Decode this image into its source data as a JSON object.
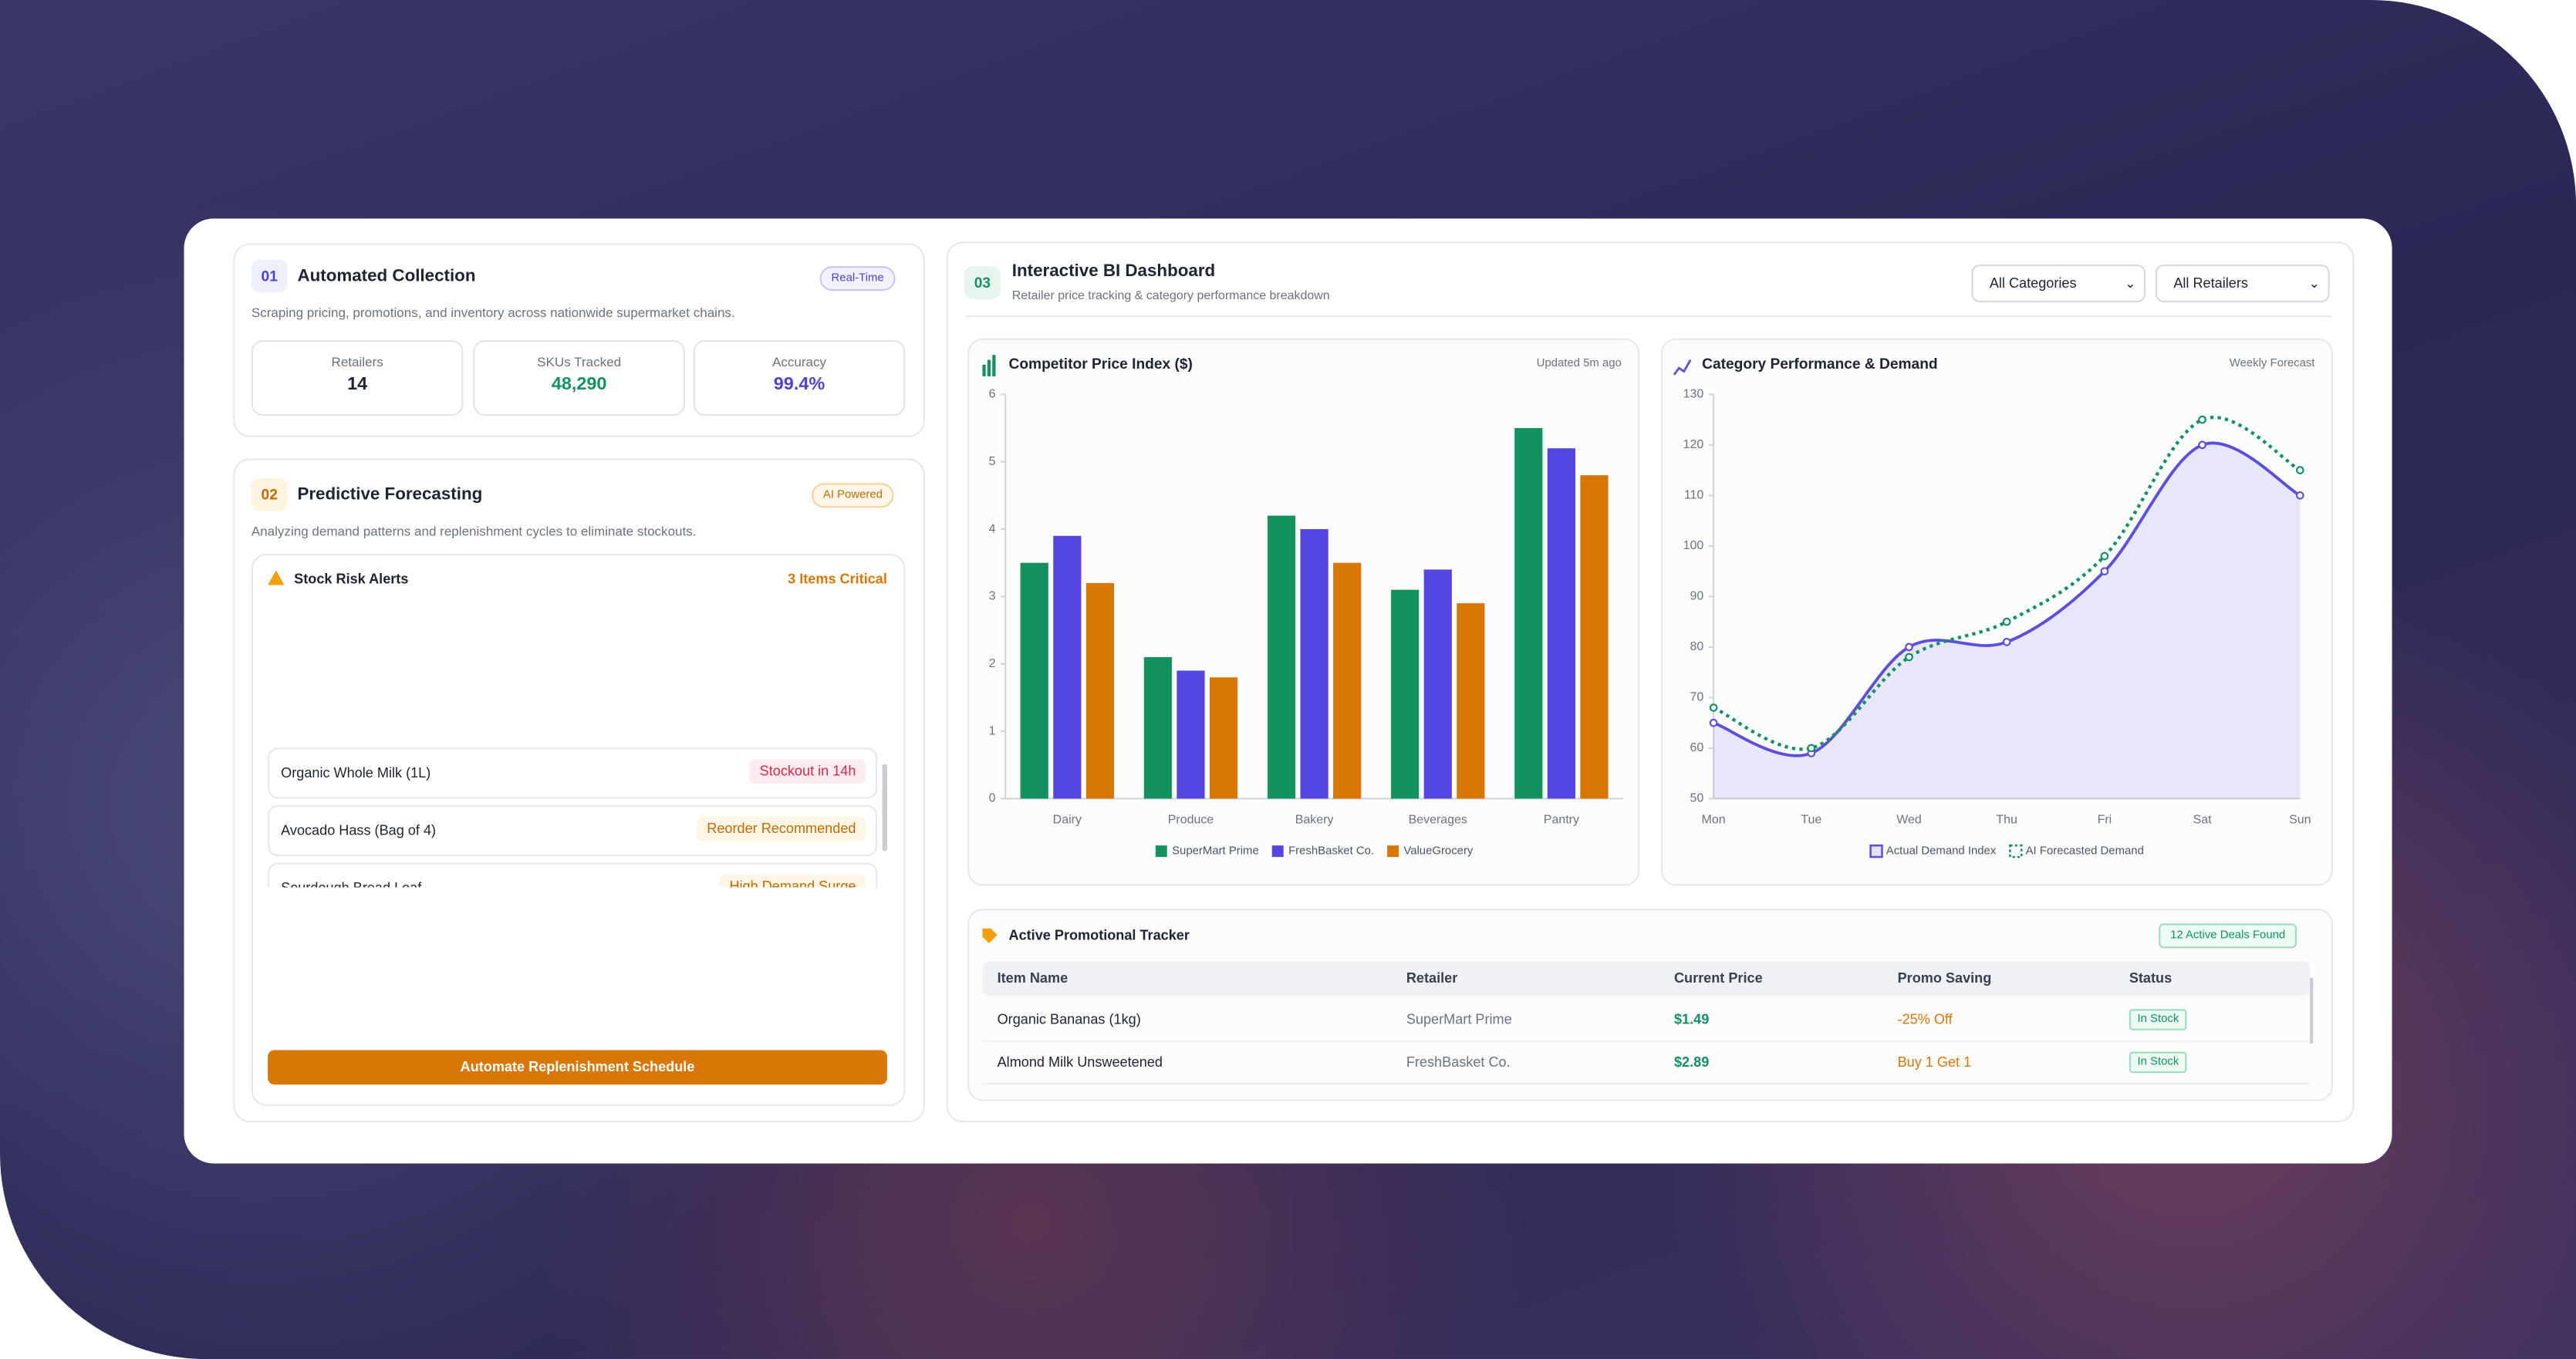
{
  "collection": {
    "number": "01",
    "title": "Automated Collection",
    "badge": "Real-Time",
    "description": "Scraping pricing, promotions, and inventory across nationwide supermarket chains.",
    "stats": [
      {
        "label": "Retailers",
        "value": "14"
      },
      {
        "label": "SKUs Tracked",
        "value": "48,290"
      },
      {
        "label": "Accuracy",
        "value": "99.4%"
      }
    ]
  },
  "forecasting": {
    "number": "02",
    "title": "Predictive Forecasting",
    "badge": "AI Powered",
    "description": "Analyzing demand patterns and replenishment cycles to eliminate stockouts.",
    "alerts": {
      "title": "Stock Risk Alerts",
      "summary": "3 Items Critical",
      "items": [
        {
          "name": "Organic Whole Milk (1L)",
          "status": "Stockout in 14h"
        },
        {
          "name": "Avocado Hass (Bag of 4)",
          "status": "Reorder Recommended"
        },
        {
          "name": "Sourdough Bread Loaf",
          "status": "High Demand Surge"
        }
      ]
    },
    "button": "Automate Replenishment Schedule"
  },
  "dashboard": {
    "number": "03",
    "title": "Interactive BI Dashboard",
    "subtitle": "Retailer price tracking & category performance breakdown",
    "filters": [
      "All Categories",
      "All Retailers"
    ]
  },
  "chart_data": [
    {
      "type": "bar",
      "title": "Competitor Price Index ($)",
      "subtitle": "Updated 5m ago",
      "categories": [
        "Dairy",
        "Produce",
        "Bakery",
        "Beverages",
        "Pantry"
      ],
      "series": [
        {
          "name": "SuperMart Prime",
          "color": "#13925f",
          "values": [
            3.5,
            2.1,
            4.2,
            3.1,
            5.5
          ]
        },
        {
          "name": "FreshBasket Co.",
          "color": "#5446e3",
          "values": [
            3.9,
            1.9,
            4.0,
            3.4,
            5.2
          ]
        },
        {
          "name": "ValueGrocery",
          "color": "#d97706",
          "values": [
            3.2,
            1.8,
            3.5,
            2.9,
            4.8
          ]
        }
      ],
      "ylim": [
        0,
        6
      ],
      "yticks": [
        0,
        1,
        2,
        3,
        4,
        5,
        6
      ],
      "grid": false,
      "legend": "bottom"
    },
    {
      "type": "line",
      "title": "Category Performance & Demand",
      "subtitle": "Weekly Forecast",
      "categories": [
        "Mon",
        "Tue",
        "Wed",
        "Thu",
        "Fri",
        "Sat",
        "Sun"
      ],
      "series": [
        {
          "name": "Actual Demand Index",
          "color": "#5b4fe0",
          "values": [
            65,
            59,
            80,
            81,
            95,
            120,
            110
          ],
          "fill": true
        },
        {
          "name": "AI Forecasted Demand",
          "color": "#13925f",
          "values": [
            68,
            60,
            78,
            85,
            98,
            125,
            115
          ],
          "dotted": true
        }
      ],
      "ylim": [
        50,
        130
      ],
      "yticks": [
        50,
        60,
        70,
        80,
        90,
        100,
        110,
        120,
        130
      ],
      "grid": false,
      "legend": "bottom"
    }
  ],
  "promo": {
    "title": "Active Promotional Tracker",
    "badge": "12 Active Deals Found",
    "columns": [
      "Item Name",
      "Retailer",
      "Current Price",
      "Promo Saving",
      "Status"
    ],
    "rows": [
      [
        "Organic Bananas (1kg)",
        "SuperMart Prime",
        "$1.49",
        "-25% Off",
        "In Stock"
      ],
      [
        "Almond Milk Unsweetened",
        "FreshBasket Co.",
        "$2.89",
        "Buy 1 Get 1",
        "In Stock"
      ]
    ]
  }
}
